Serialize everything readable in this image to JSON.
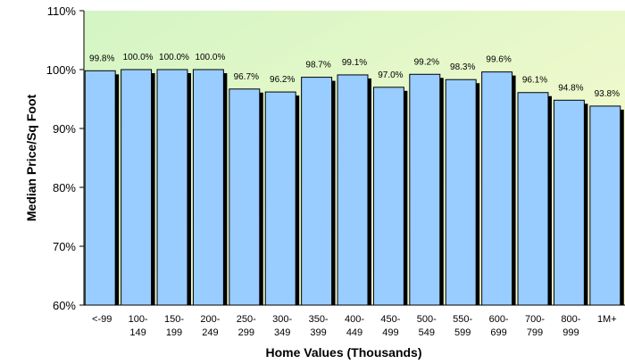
{
  "chart_data": {
    "type": "bar",
    "title": "",
    "xlabel": "Home Values (Thousands)",
    "ylabel": "Median Price/Sq Foot",
    "ylim": [
      60,
      110
    ],
    "yticks": [
      "60%",
      "70%",
      "80%",
      "90%",
      "100%",
      "110%"
    ],
    "ytick_values": [
      60,
      70,
      80,
      90,
      100,
      110
    ],
    "grid": false,
    "legend": "none",
    "categories": [
      [
        "<-99",
        ""
      ],
      [
        "100-",
        "149"
      ],
      [
        "150-",
        "199"
      ],
      [
        "200-",
        "249"
      ],
      [
        "250-",
        "299"
      ],
      [
        "300-",
        "349"
      ],
      [
        "350-",
        "399"
      ],
      [
        "400-",
        "449"
      ],
      [
        "450-",
        "499"
      ],
      [
        "500-",
        "549"
      ],
      [
        "550-",
        "599"
      ],
      [
        "600-",
        "699"
      ],
      [
        "700-",
        "799"
      ],
      [
        "800-",
        "999"
      ],
      [
        "1M+",
        ""
      ]
    ],
    "values": [
      99.8,
      100.0,
      100.0,
      100.0,
      96.7,
      96.2,
      98.7,
      99.1,
      97.0,
      99.2,
      98.3,
      99.6,
      96.1,
      94.8,
      93.8
    ],
    "value_labels": [
      "99.8%",
      "100.0%",
      "100.0%",
      "100.0%",
      "96.7%",
      "96.2%",
      "98.7%",
      "99.1%",
      "97.0%",
      "99.2%",
      "98.3%",
      "99.6%",
      "96.1%",
      "94.8%",
      "93.8%"
    ],
    "colors": {
      "bar": "#99ccff",
      "bar_shadow": "#000000",
      "plot_bg_start": "#d4f5c4",
      "plot_bg_end": "#fdfbd0"
    }
  }
}
